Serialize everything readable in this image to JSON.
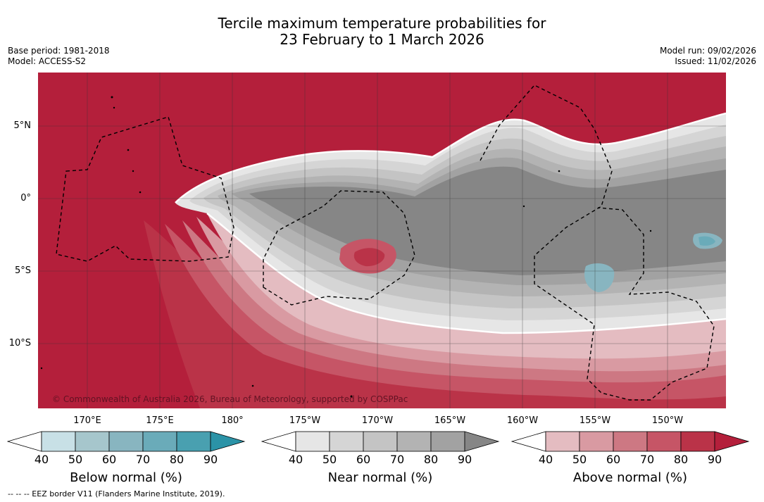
{
  "title_line1": "Tercile maximum temperature probabilities for",
  "title_line2": "23 February to 1 March 2026",
  "base_period": "Base period: 1981-2018",
  "model": "Model: ACCESS-S2",
  "model_run": "Model run: 09/02/2026",
  "issued": "Issued: 11/02/2026",
  "copyright": "© Commonwealth of Australia 2026, Bureau of Meteorology, supported by COSPPac",
  "lat_labels": [
    "5°N",
    "0°",
    "5°S",
    "10°S"
  ],
  "lon_labels": [
    "170°E",
    "175°E",
    "180°",
    "175°W",
    "170°W",
    "165°W",
    "160°W",
    "155°W",
    "150°W"
  ],
  "colorbars": {
    "below": {
      "title": "Below normal (%)",
      "ticks": [
        "40",
        "50",
        "60",
        "70",
        "80",
        "90"
      ],
      "colors": [
        "#c8e0e6",
        "#a6c6cc",
        "#88b5c0",
        "#6aabb9",
        "#49a0b0",
        "#2b93a7"
      ]
    },
    "near": {
      "title": "Near normal (%)",
      "ticks": [
        "40",
        "50",
        "60",
        "70",
        "80",
        "90"
      ],
      "colors": [
        "#e6e6e6",
        "#d5d5d5",
        "#c4c4c4",
        "#b3b3b3",
        "#a2a2a2",
        "#868686"
      ]
    },
    "above": {
      "title": "Above normal (%)",
      "ticks": [
        "40",
        "50",
        "60",
        "70",
        "80",
        "90"
      ],
      "colors": [
        "#e4bcc1",
        "#d99aa2",
        "#cd7883",
        "#c65566",
        "#ba3348",
        "#b41f3b"
      ]
    }
  },
  "footnote": "--  --  -- EEZ border V11 (Flanders Marine Institute, 2019)."
}
